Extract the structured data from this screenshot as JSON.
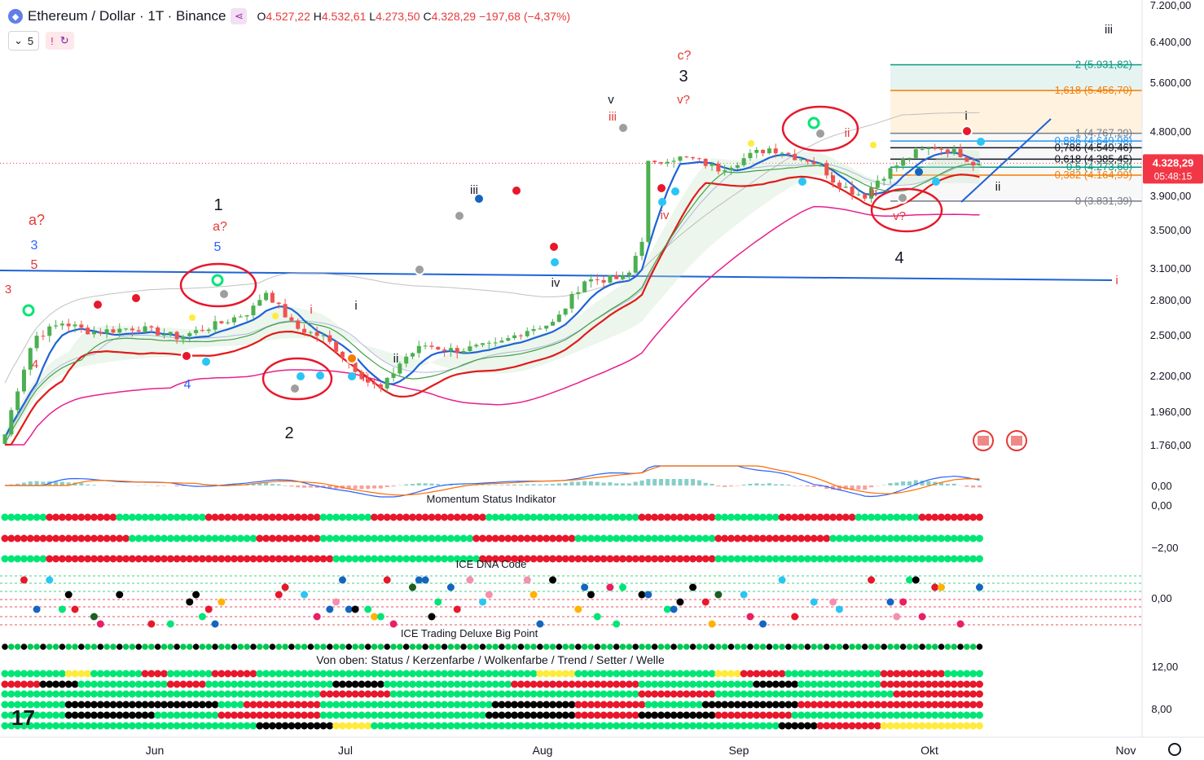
{
  "header": {
    "symbol": "Ethereum / Dollar · 1T · Binance",
    "open": "O4.527,22",
    "high": "H4.532,61",
    "low": "L4.273,50",
    "close": "C4.328,29",
    "change": "−197,68 (−4,37%)",
    "indicator_count": "5",
    "alert_icon": "exclamation-icon",
    "replay_icon": "refresh-icon"
  },
  "colors": {
    "up": "#26a69a",
    "up_candle": "#4caf50",
    "down": "#ef5350",
    "blue_line": "#1e63d6",
    "red_line": "#e11b1b",
    "magenta_line": "#e91e8c",
    "label_red": "#e53935",
    "label_blue": "#2962ff",
    "fib_green": "#089981",
    "fib_orange": "#f57c00"
  },
  "chart_data": {
    "type": "candlestick",
    "title": "Ethereum / Dollar · 1T · Binance",
    "price_axis": {
      "ticks": [
        "7.200,00",
        "6.400,00",
        "5.600,00",
        "4.800,00",
        "3.900,00",
        "3.500,00",
        "3.100,00",
        "2.800,00",
        "2.500,00",
        "2.200,00",
        "1.960,00",
        "1.760,00"
      ],
      "current_price": "4.328,29",
      "countdown": "05:48:15"
    },
    "time_axis": {
      "ticks": [
        "Jun",
        "Jul",
        "Aug",
        "Sep",
        "Okt",
        "Nov"
      ]
    },
    "fib_levels": [
      {
        "ratio": "2",
        "label": "2 (5.931,82)",
        "price": 5931.82
      },
      {
        "ratio": "1,618",
        "label": "1,618 (5.456,70)",
        "price": 5456.7
      },
      {
        "ratio": "1",
        "label": "1 (4.767,29)",
        "price": 4767.29
      },
      {
        "ratio": "0,886",
        "label": "0,886 (4.649,98)",
        "price": 4649.98
      },
      {
        "ratio": "0,786",
        "label": "0,786 (4.549,46)",
        "price": 4549.46
      },
      {
        "ratio": "0,618",
        "label": "0,618 (4.385,45)",
        "price": 4385.45
      },
      {
        "ratio": "0,5",
        "label": "0,5 (4.273,60)",
        "price": 4273.6
      },
      {
        "ratio": "0,382",
        "label": "0,382 (4.164,99)",
        "price": 4164.99
      },
      {
        "ratio": "0",
        "label": "0 (3.831,39)",
        "price": 3831.39
      }
    ],
    "wave_labels": [
      {
        "text": "a?",
        "color": "red"
      },
      {
        "text": "3",
        "color": "blue"
      },
      {
        "text": "5",
        "color": "red"
      },
      {
        "text": "3",
        "color": "red"
      },
      {
        "text": "1",
        "color": "black"
      },
      {
        "text": "a?",
        "color": "red"
      },
      {
        "text": "5",
        "color": "blue"
      },
      {
        "text": "4",
        "color": "red"
      },
      {
        "text": "4",
        "color": "blue"
      },
      {
        "text": "i",
        "color": "red"
      },
      {
        "text": "i",
        "color": "black"
      },
      {
        "text": "ii",
        "color": "black"
      },
      {
        "text": "ii",
        "color": "red"
      },
      {
        "text": "2",
        "color": "black"
      },
      {
        "text": "iii",
        "color": "black"
      },
      {
        "text": "iv",
        "color": "black"
      },
      {
        "text": "v",
        "color": "black"
      },
      {
        "text": "iii",
        "color": "red"
      },
      {
        "text": "iv",
        "color": "red"
      },
      {
        "text": "c?",
        "color": "red"
      },
      {
        "text": "3",
        "color": "black"
      },
      {
        "text": "v?",
        "color": "red"
      },
      {
        "text": "ii",
        "color": "red"
      },
      {
        "text": "i",
        "color": "red"
      },
      {
        "text": "iii",
        "color": "red"
      },
      {
        "text": "v?",
        "color": "red"
      },
      {
        "text": "4",
        "color": "black"
      },
      {
        "text": "i",
        "color": "black"
      },
      {
        "text": "ii",
        "color": "black"
      },
      {
        "text": "iii",
        "color": "black"
      },
      {
        "text": "i",
        "color": "red"
      }
    ],
    "panels": {
      "macd": {
        "zero_label": "0,00"
      },
      "momentum": {
        "title": "Momentum Status Indikator",
        "ticks": [
          "0,00",
          "−2,00"
        ]
      },
      "dna": {
        "title": "ICE DNA Code",
        "ticks": [
          "0,00"
        ]
      },
      "bigpoint": {
        "title": "ICE Trading Deluxe Big Point"
      },
      "status": {
        "title": "Von oben: Status / Kerzenfarbe / Wolkenfarbe / Trend / Setter / Welle",
        "ticks": [
          "12,00",
          "8,00"
        ]
      }
    }
  }
}
